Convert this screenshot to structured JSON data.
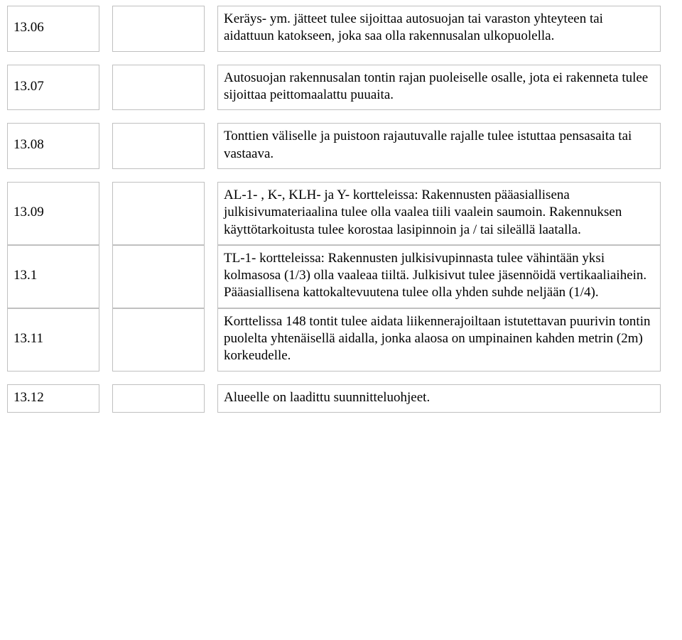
{
  "rows": [
    {
      "code": "13.06",
      "text": "Keräys- ym. jätteet tulee sijoittaa autosuojan tai varaston yhteyteen tai aidattuun katokseen, joka saa olla rakennusalan ulkopuolella."
    },
    {
      "code": "13.07",
      "text": "Autosuojan rakennusalan tontin rajan puoleiselle osalle, jota ei rakenneta tulee sijoittaa peittomaalattu puuaita."
    },
    {
      "code": "13.08",
      "text": "Tonttien väliselle ja puistoon rajautuvalle rajalle tulee istuttaa pensasaita tai vastaava."
    }
  ],
  "groupRows": [
    {
      "code": "13.09",
      "text": "AL-1- , K-, KLH- ja Y- kortteleissa: Rakennusten pääasiallisena julkisivumateriaalina tulee olla vaalea tiili vaalein saumoin. Rakennuksen käyttötarkoitusta tulee korostaa lasipinnoin ja / tai sileällä laatalla."
    },
    {
      "code": "13.1",
      "text": "TL-1- kortteleissa: Rakennusten julkisivupinnasta tulee vähintään yksi kolmasosa (1/3) olla vaaleaa tiiltä. Julkisivut tulee jäsennöidä vertikaaliaihein. Pääasiallisena kattokaltevuutena tulee olla yhden suhde neljään (1/4)."
    },
    {
      "code": "13.11",
      "text": "Korttelissa 148 tontit tulee aidata liikennerajoiltaan istutettavan puurivin tontin puolelta yhtenäisellä aidalla, jonka alaosa on umpinainen kahden metrin (2m) korkeudelle."
    }
  ],
  "lastRow": {
    "code": "13.12",
    "text": "Alueelle on laadittu suunnitteluohjeet."
  }
}
